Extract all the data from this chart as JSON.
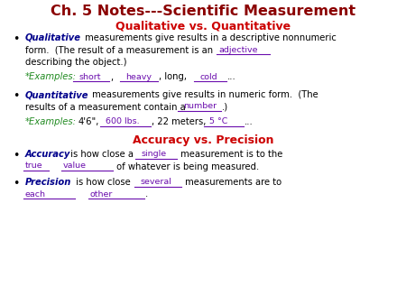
{
  "title": "Ch. 5 Notes---Scientific Measurement",
  "title_color": "#8B0000",
  "bg_color": "#FFFFFF",
  "section1_header": "Qualitative vs. Quantitative",
  "section2_header": "Accuracy vs. Precision",
  "header_color": "#CC0000",
  "body_color": "#000000",
  "fill_color": "#6A0DAD",
  "ib_color": "#00008B",
  "green_color": "#228B22",
  "title_fontsize": 11.5,
  "header_fontsize": 9.0,
  "body_fontsize": 7.2,
  "fill_fontsize": 6.8
}
